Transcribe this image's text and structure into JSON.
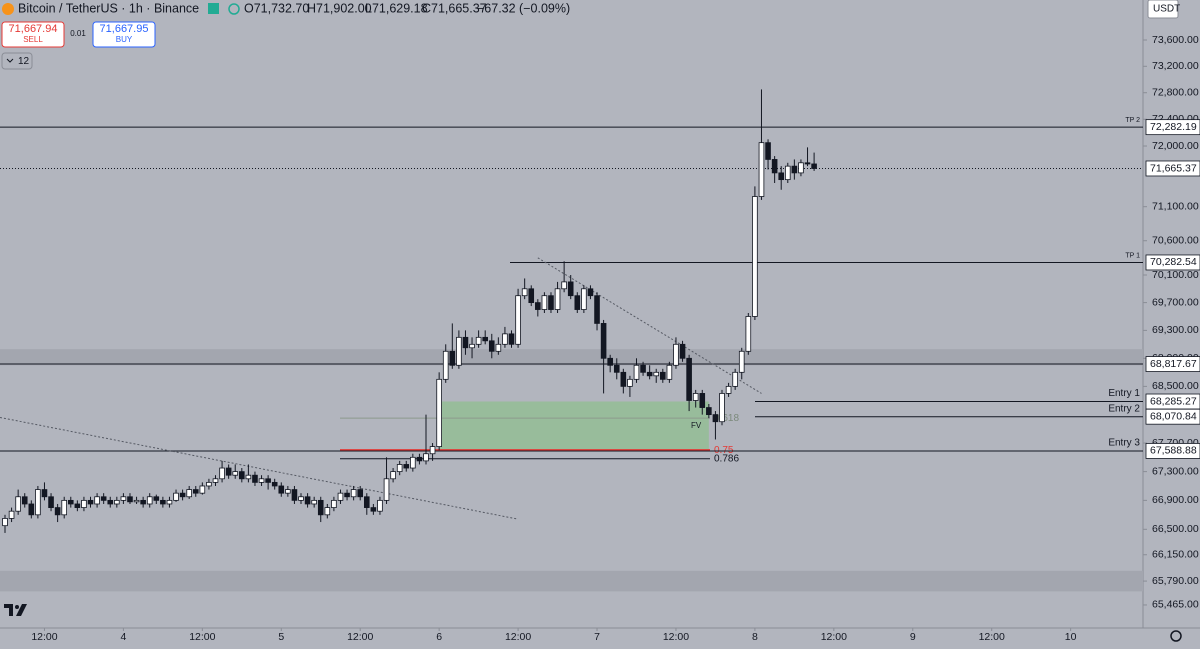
{
  "header": {
    "symbol": "Bitcoin / TetherUS · 1h · Binance",
    "open": "O71,732.70",
    "high": "H71,902.00",
    "low": "L71,629.18",
    "close": "C71,665.37",
    "change": "−67.32 (−0.09%)"
  },
  "trade": {
    "sell_price": "71,667.94",
    "sell": "SELL",
    "quantity": "0.01",
    "buy_price": "71,667.95",
    "buy": "BUY"
  },
  "indicators_toggle": "12",
  "currency": "USDT",
  "chart_data": {
    "type": "candlestick",
    "log_scale": true,
    "ylim": [
      65153,
      74213
    ],
    "xlim": [
      -0.76,
      173
    ],
    "yticks": [
      {
        "value": 73600,
        "label": "73,600.00"
      },
      {
        "value": 73200,
        "label": "73,200.00"
      },
      {
        "value": 72800,
        "label": "72,800.00"
      },
      {
        "value": 72400,
        "label": "72,400.00"
      },
      {
        "value": 72000,
        "label": "72,000.00"
      },
      {
        "value": 71100,
        "label": "71,100.00"
      },
      {
        "value": 70600,
        "label": "70,600.00"
      },
      {
        "value": 70100,
        "label": "70,100.00"
      },
      {
        "value": 69700,
        "label": "69,700.00"
      },
      {
        "value": 69300,
        "label": "69,300.00"
      },
      {
        "value": 68900,
        "label": "68,900.00"
      },
      {
        "value": 68500,
        "label": "68,500.00"
      },
      {
        "value": 67700,
        "label": "67,700.00"
      },
      {
        "value": 67300,
        "label": "67,300.00"
      },
      {
        "value": 66900,
        "label": "66,900.00"
      },
      {
        "value": 66500,
        "label": "66,500.00"
      },
      {
        "value": 66150,
        "label": "66,150.00"
      },
      {
        "value": 65790,
        "label": "65,790.00"
      },
      {
        "value": 65465,
        "label": "65,465.00"
      }
    ],
    "xticks": [
      {
        "value": 6,
        "label": "12:00"
      },
      {
        "value": 18,
        "label": "4"
      },
      {
        "value": 30,
        "label": "12:00"
      },
      {
        "value": 42,
        "label": "5"
      },
      {
        "value": 54,
        "label": "12:00"
      },
      {
        "value": 66,
        "label": "6"
      },
      {
        "value": 78,
        "label": "12:00"
      },
      {
        "value": 90,
        "label": "7"
      },
      {
        "value": 102,
        "label": "12:00"
      },
      {
        "value": 114,
        "label": "8"
      },
      {
        "value": 126,
        "label": "12:00"
      },
      {
        "value": 138,
        "label": "9"
      },
      {
        "value": 150,
        "label": "12:00"
      },
      {
        "value": 162,
        "label": "10"
      }
    ],
    "colors": {
      "up": "#ffffff",
      "down": "#131722",
      "wick": "#131722",
      "zone": "#8fbf8f",
      "fib_0_75": "#e53935"
    },
    "ohlc": [
      [
        66550,
        66700,
        66450,
        66650
      ],
      [
        66650,
        66800,
        66600,
        66750
      ],
      [
        66750,
        67050,
        66700,
        66950
      ],
      [
        66950,
        67000,
        66800,
        66850
      ],
      [
        66850,
        66900,
        66650,
        66700
      ],
      [
        66700,
        67100,
        66650,
        67050
      ],
      [
        67050,
        67150,
        66900,
        66950
      ],
      [
        66950,
        67000,
        66750,
        66800
      ],
      [
        66800,
        66850,
        66600,
        66700
      ],
      [
        66700,
        66950,
        66650,
        66900
      ],
      [
        66900,
        66950,
        66800,
        66850
      ],
      [
        66850,
        66900,
        66750,
        66800
      ],
      [
        66800,
        66950,
        66750,
        66900
      ],
      [
        66900,
        66950,
        66800,
        66850
      ],
      [
        66850,
        67000,
        66800,
        66950
      ],
      [
        66950,
        67000,
        66850,
        66900
      ],
      [
        66900,
        66950,
        66800,
        66850
      ],
      [
        66850,
        66950,
        66800,
        66900
      ],
      [
        66900,
        67000,
        66850,
        66950
      ],
      [
        66950,
        67000,
        66850,
        66880
      ],
      [
        66880,
        66950,
        66850,
        66900
      ],
      [
        66900,
        66950,
        66800,
        66850
      ],
      [
        66850,
        67000,
        66800,
        66950
      ],
      [
        66950,
        66980,
        66850,
        66900
      ],
      [
        66900,
        66950,
        66800,
        66850
      ],
      [
        66850,
        66950,
        66800,
        66900
      ],
      [
        66900,
        67050,
        66880,
        67000
      ],
      [
        67000,
        67050,
        66900,
        66950
      ],
      [
        66950,
        67100,
        66920,
        67050
      ],
      [
        67050,
        67100,
        66950,
        67000
      ],
      [
        67000,
        67150,
        66980,
        67100
      ],
      [
        67100,
        67200,
        67050,
        67150
      ],
      [
        67150,
        67250,
        67100,
        67200
      ],
      [
        67200,
        67450,
        67150,
        67350
      ],
      [
        67350,
        67400,
        67200,
        67250
      ],
      [
        67250,
        67400,
        67200,
        67300
      ],
      [
        67300,
        67350,
        67150,
        67200
      ],
      [
        67200,
        67400,
        67150,
        67250
      ],
      [
        67250,
        67300,
        67100,
        67150
      ],
      [
        67150,
        67250,
        67100,
        67200
      ],
      [
        67200,
        67250,
        67050,
        67150
      ],
      [
        67150,
        67200,
        67050,
        67100
      ],
      [
        67100,
        67150,
        66950,
        67000
      ],
      [
        67000,
        67100,
        66950,
        67050
      ],
      [
        67050,
        67100,
        66850,
        66900
      ],
      [
        66900,
        67000,
        66850,
        66950
      ],
      [
        66950,
        67000,
        66800,
        66850
      ],
      [
        66850,
        66950,
        66800,
        66900
      ],
      [
        66900,
        66950,
        66600,
        66700
      ],
      [
        66700,
        66850,
        66650,
        66800
      ],
      [
        66800,
        66950,
        66750,
        66900
      ],
      [
        66900,
        67050,
        66850,
        67000
      ],
      [
        67000,
        67050,
        66900,
        66950
      ],
      [
        66950,
        67100,
        66900,
        67050
      ],
      [
        67050,
        67100,
        66900,
        66950
      ],
      [
        66950,
        67000,
        66700,
        66800
      ],
      [
        66800,
        66850,
        66700,
        66750
      ],
      [
        66750,
        66950,
        66700,
        66900
      ],
      [
        66900,
        67500,
        66850,
        67200
      ],
      [
        67200,
        67350,
        67150,
        67300
      ],
      [
        67300,
        67450,
        67250,
        67400
      ],
      [
        67400,
        67450,
        67300,
        67350
      ],
      [
        67350,
        67550,
        67300,
        67500
      ],
      [
        67500,
        67550,
        67400,
        67450
      ],
      [
        67450,
        68100,
        67400,
        67550
      ],
      [
        67550,
        67700,
        67450,
        67650
      ],
      [
        67650,
        68700,
        67600,
        68600
      ],
      [
        68600,
        69100,
        68550,
        69000
      ],
      [
        69000,
        69400,
        68750,
        68800
      ],
      [
        68800,
        69300,
        68750,
        69200
      ],
      [
        69200,
        69300,
        68950,
        69050
      ],
      [
        69050,
        69200,
        68900,
        69100
      ],
      [
        69100,
        69300,
        69050,
        69200
      ],
      [
        69200,
        69300,
        69100,
        69150
      ],
      [
        69150,
        69250,
        68900,
        69000
      ],
      [
        69000,
        69200,
        68950,
        69100
      ],
      [
        69100,
        69350,
        69050,
        69250
      ],
      [
        69250,
        69300,
        69050,
        69100
      ],
      [
        69100,
        69900,
        69050,
        69800
      ],
      [
        69800,
        70050,
        69750,
        69900
      ],
      [
        69900,
        69950,
        69650,
        69700
      ],
      [
        69700,
        69750,
        69500,
        69600
      ],
      [
        69600,
        69850,
        69550,
        69800
      ],
      [
        69800,
        69850,
        69550,
        69600
      ],
      [
        69600,
        70000,
        69550,
        69900
      ],
      [
        69900,
        70300,
        69850,
        70000
      ],
      [
        70000,
        70100,
        69750,
        69800
      ],
      [
        69800,
        69850,
        69550,
        69600
      ],
      [
        69600,
        69950,
        69550,
        69900
      ],
      [
        69900,
        69950,
        69750,
        69800
      ],
      [
        69800,
        69850,
        69300,
        69400
      ],
      [
        69400,
        69450,
        68400,
        68900
      ],
      [
        68900,
        68950,
        68700,
        68800
      ],
      [
        68800,
        68900,
        68600,
        68700
      ],
      [
        68700,
        68750,
        68400,
        68500
      ],
      [
        68500,
        68650,
        68350,
        68600
      ],
      [
        68600,
        68900,
        68550,
        68800
      ],
      [
        68800,
        68850,
        68650,
        68700
      ],
      [
        68700,
        68800,
        68600,
        68650
      ],
      [
        68650,
        68750,
        68550,
        68700
      ],
      [
        68700,
        68750,
        68550,
        68600
      ],
      [
        68600,
        68850,
        68550,
        68800
      ],
      [
        68800,
        69200,
        68750,
        69100
      ],
      [
        69100,
        69150,
        68850,
        68900
      ],
      [
        68900,
        68950,
        68150,
        68300
      ],
      [
        68300,
        68450,
        68200,
        68400
      ],
      [
        68400,
        68450,
        68100,
        68200
      ],
      [
        68200,
        68250,
        68050,
        68100
      ],
      [
        68100,
        68150,
        67750,
        68000
      ],
      [
        68000,
        68450,
        67950,
        68400
      ],
      [
        68400,
        68550,
        68350,
        68500
      ],
      [
        68500,
        68750,
        68450,
        68700
      ],
      [
        68700,
        69050,
        68600,
        69000
      ],
      [
        69000,
        69550,
        68950,
        69500
      ],
      [
        69500,
        71400,
        69450,
        71250
      ],
      [
        71250,
        72850,
        71200,
        72050
      ],
      [
        72050,
        72100,
        71650,
        71800
      ],
      [
        71800,
        71850,
        71450,
        71600
      ],
      [
        71600,
        71700,
        71350,
        71500
      ],
      [
        71500,
        71750,
        71450,
        71700
      ],
      [
        71700,
        71800,
        71500,
        71600
      ],
      [
        71600,
        71800,
        71550,
        71750
      ],
      [
        71750,
        71980,
        71700,
        71732.7
      ],
      [
        71732.7,
        71902,
        71629.18,
        71665.37
      ]
    ],
    "last_price": {
      "value": 71665.37,
      "label": "71,665.37"
    },
    "levels": [
      {
        "name": "TP 2",
        "value": 72282.19,
        "label": "72,282.19"
      },
      {
        "name": "TP 1",
        "value": 70282.54,
        "label": "70,282.54"
      },
      {
        "value": 68817.67,
        "label": "68,817.67"
      },
      {
        "name": "Entry 1",
        "value": 68285.27,
        "label": "68,285.27"
      },
      {
        "name": "Entry 2",
        "value": 68070.84,
        "label": "68,070.84"
      },
      {
        "name": "Entry 3",
        "value": 67588.88,
        "label": "67,588.88"
      }
    ],
    "bands": [
      [
        69030,
        68800
      ],
      [
        65930,
        65650
      ]
    ],
    "zone": {
      "x": [
        66,
        107
      ],
      "y": [
        68285.27,
        67588.88
      ]
    },
    "fib": [
      {
        "label": "0.618",
        "value": 68050
      },
      {
        "label": "0.75",
        "value": 67600
      },
      {
        "label": "0.786",
        "value": 67480
      }
    ],
    "annotation": "FV",
    "trendlines": [
      {
        "x": [
          -0.76,
          78
        ],
        "y": [
          68060,
          66640
        ]
      },
      {
        "x": [
          81,
          115
        ],
        "y": [
          70350,
          68400
        ]
      }
    ]
  }
}
